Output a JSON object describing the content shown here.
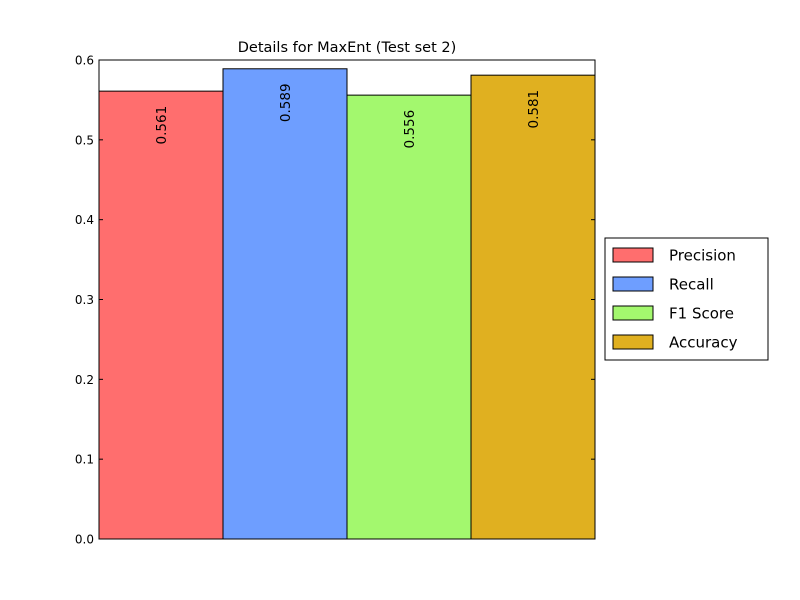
{
  "chart_data": {
    "type": "bar",
    "title": "Details for MaxEnt (Test set 2)",
    "xlabel": "",
    "ylabel": "",
    "ylim": [
      0,
      0.6
    ],
    "yticks": [
      "0.0",
      "0.1",
      "0.2",
      "0.3",
      "0.4",
      "0.5",
      "0.6"
    ],
    "grid": "horizontal dotted",
    "legend_position": "right, outside plot",
    "categories": [
      "Precision",
      "Recall",
      "F1 Score",
      "Accuracy"
    ],
    "values": [
      0.561,
      0.589,
      0.556,
      0.581
    ],
    "value_labels": [
      "0.561",
      "0.589",
      "0.556",
      "0.581"
    ],
    "colors": [
      "#ff6e6e",
      "#6e9eff",
      "#a3f86e",
      "#e0b020"
    ],
    "legend": [
      "Precision",
      "Recall",
      "F1 Score",
      "Accuracy"
    ]
  }
}
